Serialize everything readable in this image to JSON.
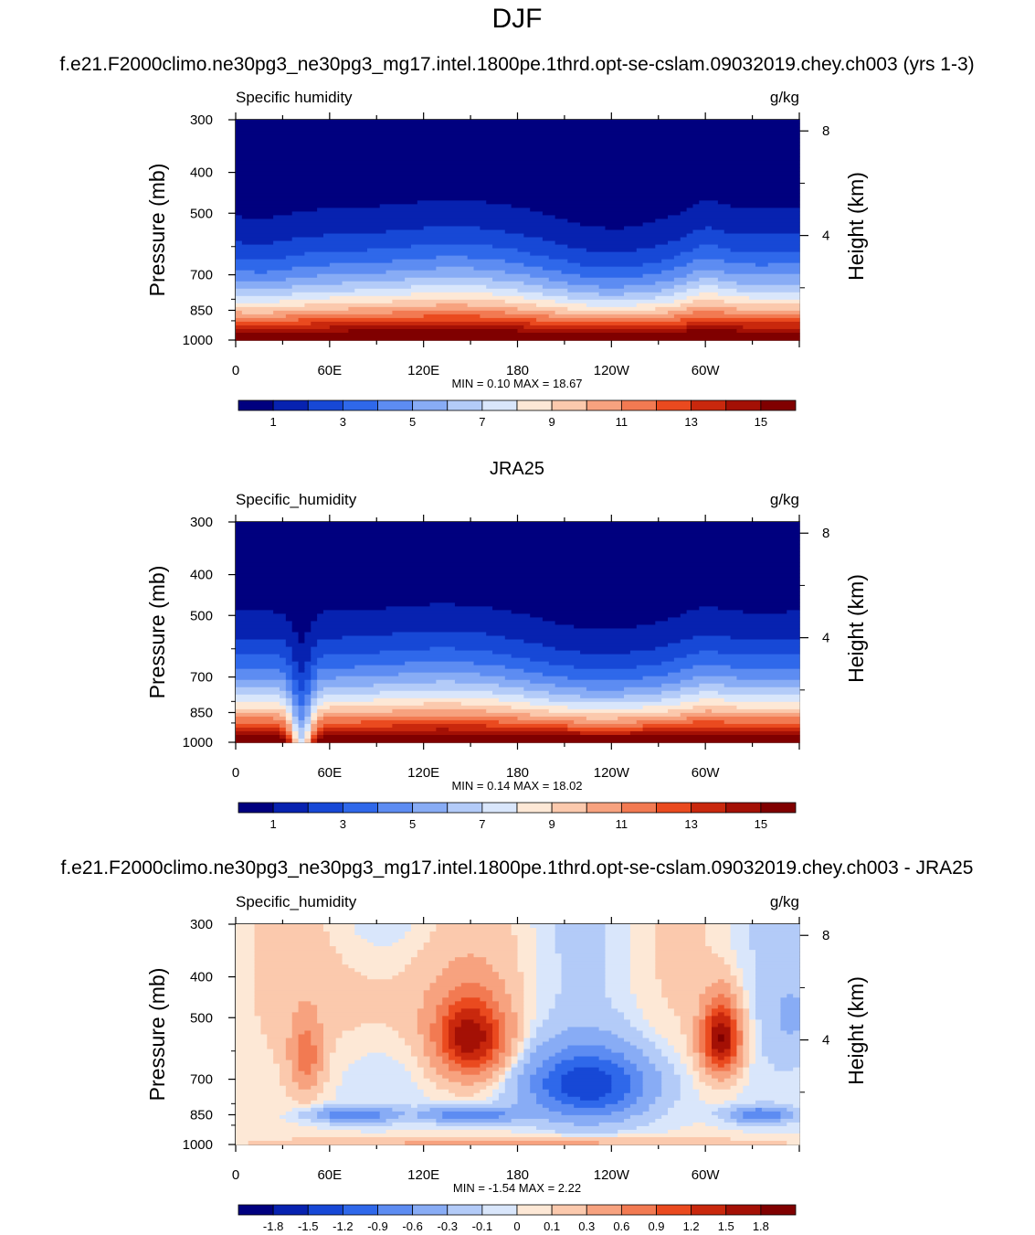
{
  "figure": {
    "season": "DJF",
    "units": "g/kg"
  },
  "chart_data": [
    {
      "type": "heatmap",
      "title": "f.e21.F2000climo.ne30pg3_ne30pg3_mg17.intel.1800pe.1thrd.opt-se-cslam.09032019.chey.ch003 (yrs 1-3)",
      "variable_label": "Specific humidity",
      "units": "g/kg",
      "xlabel": "",
      "ylabel": "Pressure (mb)",
      "y2label": "Height (km)",
      "x_ticks": [
        "0",
        "60E",
        "120E",
        "180",
        "120W",
        "60W"
      ],
      "x_tick_values": [
        0,
        60,
        120,
        180,
        240,
        300
      ],
      "xlim": [
        0,
        360
      ],
      "y_ticks": [
        "300",
        "400",
        "500",
        "700",
        "850",
        "1000"
      ],
      "y_tick_values": [
        300,
        400,
        500,
        700,
        850,
        1000
      ],
      "ylim": [
        300,
        1000
      ],
      "y2_ticks": [
        "8",
        "4"
      ],
      "y2_tick_values": [
        8,
        4
      ],
      "stats": "MIN =   0.10  MAX =  18.67",
      "min": 0.1,
      "max": 18.67,
      "levels": [
        1,
        2,
        3,
        4,
        5,
        6,
        7,
        8,
        9,
        10,
        11,
        12,
        13,
        14,
        15
      ],
      "colorbar_labels": [
        "1",
        "3",
        "5",
        "7",
        "9",
        "11",
        "13",
        "15"
      ]
    },
    {
      "type": "heatmap",
      "title": "JRA25",
      "variable_label": "Specific_humidity",
      "units": "g/kg",
      "xlabel": "",
      "ylabel": "Pressure (mb)",
      "y2label": "Height (km)",
      "x_ticks": [
        "0",
        "60E",
        "120E",
        "180",
        "120W",
        "60W"
      ],
      "x_tick_values": [
        0,
        60,
        120,
        180,
        240,
        300
      ],
      "xlim": [
        0,
        360
      ],
      "y_ticks": [
        "300",
        "400",
        "500",
        "700",
        "850",
        "1000"
      ],
      "y_tick_values": [
        300,
        400,
        500,
        700,
        850,
        1000
      ],
      "ylim": [
        300,
        1000
      ],
      "y2_ticks": [
        "8",
        "4"
      ],
      "y2_tick_values": [
        8,
        4
      ],
      "stats": "MIN =   0.14  MAX =  18.02",
      "min": 0.14,
      "max": 18.02,
      "levels": [
        1,
        2,
        3,
        4,
        5,
        6,
        7,
        8,
        9,
        10,
        11,
        12,
        13,
        14,
        15
      ],
      "colorbar_labels": [
        "1",
        "3",
        "5",
        "7",
        "9",
        "11",
        "13",
        "15"
      ]
    },
    {
      "type": "heatmap",
      "title": "f.e21.F2000climo.ne30pg3_ne30pg3_mg17.intel.1800pe.1thrd.opt-se-cslam.09032019.chey.ch003 - JRA25",
      "variable_label": "Specific_humidity",
      "units": "g/kg",
      "xlabel": "",
      "ylabel": "Pressure (mb)",
      "y2label": "Height (km)",
      "x_ticks": [
        "0",
        "60E",
        "120E",
        "180",
        "120W",
        "60W"
      ],
      "x_tick_values": [
        0,
        60,
        120,
        180,
        240,
        300
      ],
      "xlim": [
        0,
        360
      ],
      "y_ticks": [
        "300",
        "400",
        "500",
        "700",
        "850",
        "1000"
      ],
      "y_tick_values": [
        300,
        400,
        500,
        700,
        850,
        1000
      ],
      "ylim": [
        300,
        1000
      ],
      "y2_ticks": [
        "8",
        "4"
      ],
      "y2_tick_values": [
        8,
        4
      ],
      "stats": "MIN =  -1.54  MAX =   2.22",
      "min": -1.54,
      "max": 2.22,
      "levels": [
        -1.8,
        -1.5,
        -1.2,
        -0.9,
        -0.6,
        -0.3,
        -0.1,
        0,
        0.1,
        0.3,
        0.6,
        0.9,
        1.2,
        1.5,
        1.8
      ],
      "colorbar_labels": [
        "-1.8",
        "-1.5",
        "-1.2",
        "-0.9",
        "-0.6",
        "-0.3",
        "-0.1",
        "0",
        "0.1",
        "0.3",
        "0.6",
        "0.9",
        "1.2",
        "1.5",
        "1.8"
      ]
    }
  ],
  "palette": [
    "#00007f",
    "#0722b0",
    "#1748d6",
    "#2f68ea",
    "#5d8cf2",
    "#88acf5",
    "#b3cbf8",
    "#d9e6fb",
    "#fde8d6",
    "#fbc9ad",
    "#f7a27f",
    "#f27a52",
    "#ea4a1f",
    "#c9280d",
    "#a41005",
    "#800000"
  ],
  "topography_color": "#000000"
}
